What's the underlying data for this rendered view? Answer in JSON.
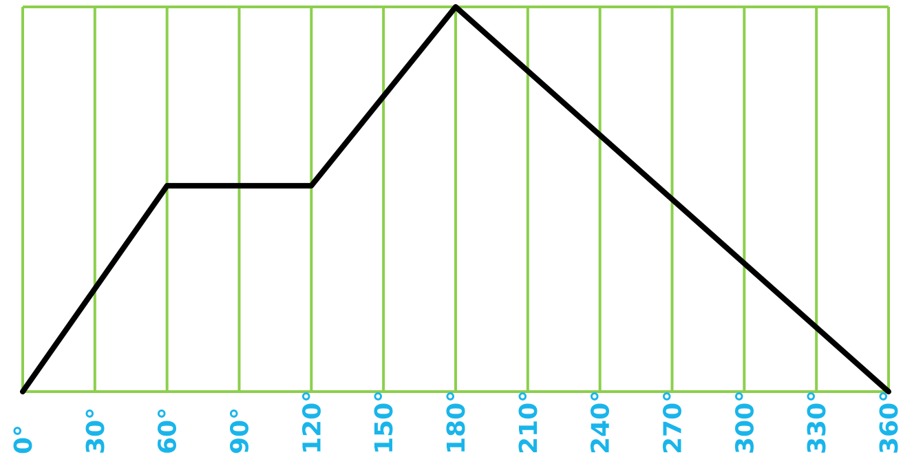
{
  "chart_data": {
    "type": "line",
    "title": "",
    "xlabel": "",
    "ylabel": "",
    "x": [
      0,
      60,
      120,
      180,
      360
    ],
    "series": [
      {
        "values": [
          0,
          0.535,
          0.535,
          1.0,
          0
        ]
      }
    ],
    "xlim": [
      0,
      360
    ],
    "ylim": [
      0,
      1
    ],
    "xticks": [
      0,
      30,
      60,
      90,
      120,
      150,
      180,
      210,
      240,
      270,
      300,
      330,
      360
    ],
    "xtick_labels": [
      "0°",
      "30°",
      "60°",
      "90°",
      "120°",
      "150°",
      "180°",
      "210°",
      "240°",
      "270°",
      "300°",
      "330°",
      "360°"
    ],
    "grid": "vertical lines at every tick, top and bottom border",
    "colors": {
      "grid": "#8ccf4d",
      "line": "#000000",
      "tick_label": "#19b5ea"
    }
  }
}
